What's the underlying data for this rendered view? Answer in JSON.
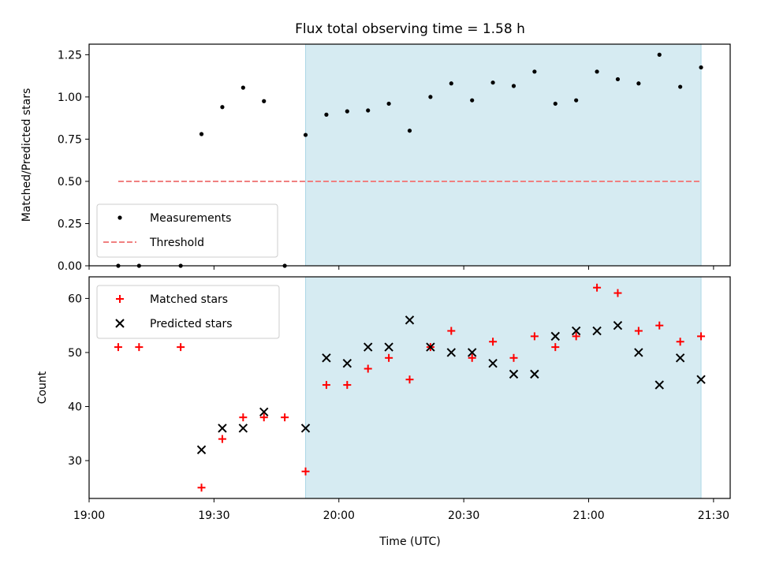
{
  "chart_data": {
    "title": "Flux total observing time = 1.58 h",
    "xlabel": "Time (UTC)",
    "x_tick_labels": [
      "19:00",
      "19:30",
      "20:00",
      "20:30",
      "21:00",
      "21:30"
    ],
    "x_tick_minutes": [
      0,
      30,
      60,
      90,
      120,
      150
    ],
    "x_range_minutes": [
      0,
      154
    ],
    "shaded_span_minutes": [
      52,
      147
    ],
    "shade_color": "#add8e6",
    "charts": [
      {
        "type": "scatter",
        "ylabel": "Matched/Predicted stars",
        "ylim": [
          0,
          1.3125
        ],
        "y_tick_values": [
          0,
          0.25,
          0.5,
          0.75,
          1.0,
          1.25
        ],
        "y_tick_labels": [
          "0.00",
          "0.25",
          "0.50",
          "0.75",
          "1.00",
          "1.25"
        ],
        "legend_position": "lower-left",
        "series": [
          {
            "name": "Measurements",
            "marker": "dot",
            "color": "#000000",
            "x": [
              "19:07",
              "19:12",
              "19:22",
              "19:27",
              "19:32",
              "19:37",
              "19:42",
              "19:47",
              "19:52",
              "19:57",
              "20:02",
              "20:07",
              "20:12",
              "20:17",
              "20:22",
              "20:27",
              "20:32",
              "20:37",
              "20:42",
              "20:47",
              "20:52",
              "20:57",
              "21:02",
              "21:07",
              "21:12",
              "21:17",
              "21:22",
              "21:27"
            ],
            "y": [
              0.0,
              0.0,
              0.0,
              0.78,
              0.94,
              1.055,
              0.975,
              0.0,
              0.775,
              0.895,
              0.915,
              0.92,
              0.96,
              0.8,
              1.0,
              1.08,
              0.98,
              1.085,
              1.065,
              1.15,
              0.96,
              0.98,
              1.15,
              1.105,
              1.08,
              1.25,
              1.06,
              1.175
            ]
          },
          {
            "name": "Threshold",
            "marker": "dashed-line",
            "color": "#f08080",
            "x": [
              "19:07",
              "21:27"
            ],
            "y": [
              0.5,
              0.5
            ]
          }
        ]
      },
      {
        "type": "scatter",
        "ylabel": "Count",
        "ylim": [
          23,
          64
        ],
        "y_tick_values": [
          30,
          40,
          50,
          60
        ],
        "y_tick_labels": [
          "30",
          "40",
          "50",
          "60"
        ],
        "legend_position": "upper-left",
        "series": [
          {
            "name": "Matched stars",
            "marker": "plus",
            "color": "#ff0000",
            "x": [
              "19:07",
              "19:12",
              "19:22",
              "19:27",
              "19:32",
              "19:37",
              "19:42",
              "19:47",
              "19:52",
              "19:57",
              "20:02",
              "20:07",
              "20:12",
              "20:17",
              "20:22",
              "20:27",
              "20:32",
              "20:37",
              "20:42",
              "20:47",
              "20:52",
              "20:57",
              "21:02",
              "21:07",
              "21:12",
              "21:17",
              "21:22",
              "21:27"
            ],
            "y": [
              51,
              51,
              51,
              25,
              34,
              38,
              38,
              38,
              28,
              44,
              44,
              47,
              49,
              45,
              51,
              54,
              49,
              52,
              49,
              53,
              51,
              53,
              62,
              61,
              54,
              55,
              52,
              53
            ]
          },
          {
            "name": "Predicted stars",
            "marker": "x",
            "color": "#000000",
            "x": [
              "19:27",
              "19:32",
              "19:37",
              "19:42",
              "19:52",
              "19:57",
              "20:02",
              "20:07",
              "20:12",
              "20:17",
              "20:22",
              "20:27",
              "20:32",
              "20:37",
              "20:42",
              "20:47",
              "20:52",
              "20:57",
              "21:02",
              "21:07",
              "21:12",
              "21:17",
              "21:22",
              "21:27"
            ],
            "y": [
              32,
              36,
              36,
              39,
              36,
              49,
              48,
              51,
              51,
              56,
              51,
              50,
              50,
              48,
              46,
              46,
              53,
              54,
              54,
              55,
              50,
              44,
              49,
              45
            ]
          }
        ]
      }
    ]
  }
}
